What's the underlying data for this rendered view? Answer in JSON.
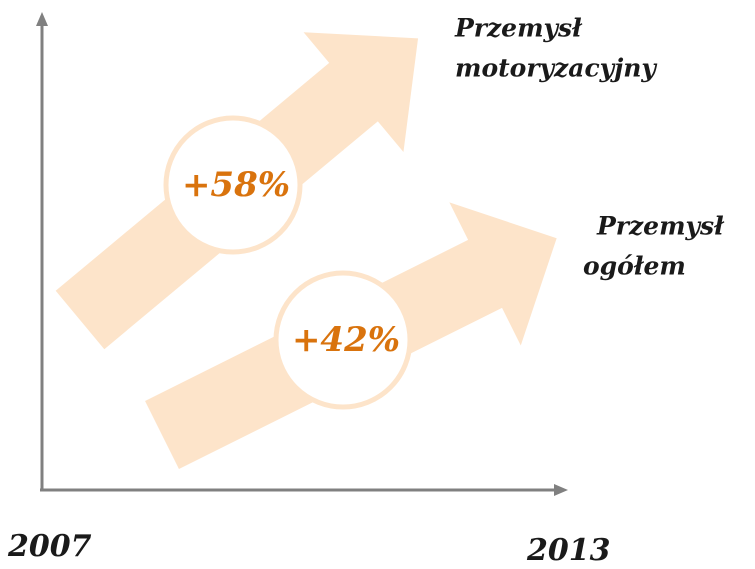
{
  "arrows": [
    {
      "label_lines": [
        "Przemysł",
        "motoryzacyjny"
      ],
      "value_label": "+58%"
    },
    {
      "label_lines": [
        "Przemysł",
        "ogółem"
      ],
      "value_label": "+42%"
    }
  ],
  "x_axis": {
    "start": "2007",
    "end": "2013"
  }
}
